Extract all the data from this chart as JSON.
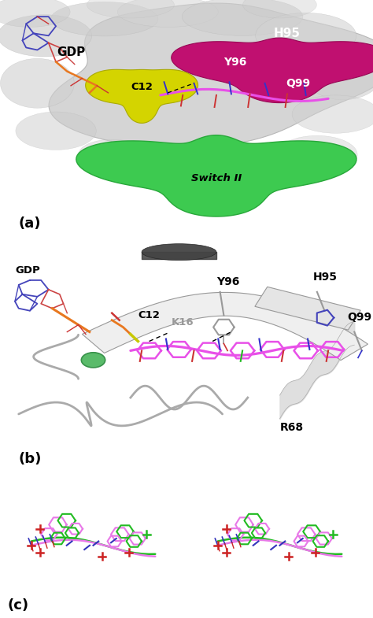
{
  "figure_size": [
    4.74,
    7.85
  ],
  "dpi": 100,
  "background_color": "#ffffff",
  "panel_labels": [
    "(a)",
    "(b)",
    "(c)"
  ],
  "panel_label_fontsize": 13,
  "panel_label_weight": "bold",
  "panel_a": {
    "protein_surface_color": "#d2d2d2",
    "protein_surface_edge": "#aaaaaa",
    "switch2_color": "#3dca50",
    "switch2_label": "Switch II",
    "c12_color": "#d4d400",
    "c12_label": "C12",
    "h95_color": "#c01070",
    "h95_label": "H95",
    "y96_label": "Y96",
    "q99_label": "Q99",
    "gdp_label": "GDP",
    "ligand_color": "#e850e8",
    "hbond_color": "#000000",
    "N_color": "#3333cc",
    "O_color": "#cc3333",
    "orange_color": "#e87820"
  },
  "panel_b": {
    "ribbon_color": "#c8c8c8",
    "ribbon_edge": "#888888",
    "gdp_label": "GDP",
    "c12_label": "C12",
    "k16_label": "K16",
    "y96_label": "Y96",
    "h95_label": "H95",
    "q99_label": "Q99",
    "r68_label": "R68",
    "ligand_color": "#e850e8",
    "hbond_color": "#000000",
    "mg_color": "#5abb6a",
    "sulfur_color": "#c8c800",
    "phosphate_color": "#e87820",
    "N_color": "#3333cc",
    "O_color": "#cc3333",
    "dark_gray": "#444444",
    "light_gray": "#d8d8d8"
  },
  "panel_c": {
    "pink_color": "#e878e8",
    "green_color": "#22bb22",
    "blue_color": "#3333bb",
    "red_color": "#cc2222",
    "bg": "#ffffff"
  }
}
